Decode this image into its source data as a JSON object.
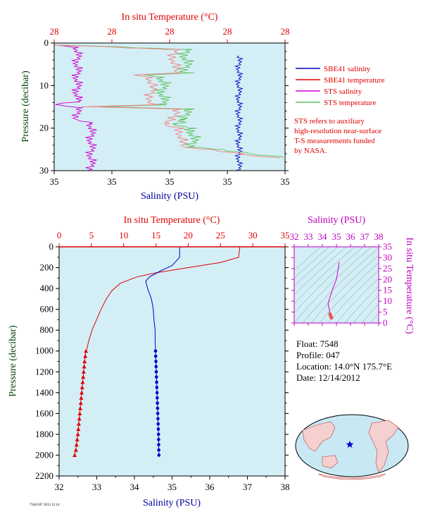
{
  "colors": {
    "plot_bg": "#d4eef6",
    "sbe41_salinity": "#0000c8",
    "sbe41_temperature": "#e00000",
    "sts_salinity": "#d000d0",
    "sts_temperature": "#60c060",
    "sts_temperature_alt": "#f08080",
    "top_axis": "#e00000",
    "bottom_axis": "#0000a0",
    "pressure_axis": "#004000",
    "ts_axis": "#c000c0"
  },
  "legend": {
    "items": [
      {
        "label": "SBE41 salinity",
        "color_key": "sbe41_salinity"
      },
      {
        "label": "SBE41 temperature",
        "color_key": "sbe41_temperature"
      },
      {
        "label": "STS salinity",
        "color_key": "sts_salinity"
      },
      {
        "label": "STS temperature",
        "color_key": "sts_temperature"
      }
    ],
    "note_lines": [
      "STS refers to auxiliary",
      "high-resolution near-surface",
      "T-S measurements funded",
      "by NASA."
    ]
  },
  "info": {
    "float": "Float:  7548",
    "profile": "Profile:  047",
    "location": "Location:  14.0°N  175.7°E",
    "date": "Date:  12/14/2012"
  },
  "tiny_label": "7548 047 2012 12 14",
  "chart_data": [
    {
      "id": "near-surface",
      "type": "line",
      "top_axis_label": "In situ Temperature (°C)",
      "top_ticks": [
        "28",
        "28",
        "28",
        "28",
        "28"
      ],
      "bottom_axis_label": "Salinity (PSU)",
      "bottom_ticks": [
        "35",
        "35",
        "35",
        "35",
        "35"
      ],
      "y_axis_label": "Pressure (decibar)",
      "y_ticks": [
        "0",
        "10",
        "20",
        "30"
      ],
      "ylim": [
        0,
        30
      ],
      "series": [
        {
          "name": "SBE41 salinity",
          "color_key": "sbe41_salinity",
          "points": [
            [
              0.8,
              3
            ],
            [
              0.8,
              30
            ]
          ]
        },
        {
          "name": "STS salinity",
          "color_key": "sts_salinity",
          "points": [
            [
              0.02,
              0.5
            ],
            [
              0.1,
              1.0
            ],
            [
              0.1,
              13.8
            ],
            [
              0.0,
              14.5
            ],
            [
              0.1,
              15.2
            ],
            [
              0.1,
              18.0
            ],
            [
              0.16,
              19.0
            ],
            [
              0.16,
              30
            ]
          ]
        },
        {
          "name": "STS temperature",
          "color_key": "sts_temperature",
          "points": [
            [
              0.02,
              0.5
            ],
            [
              0.25,
              0.8
            ],
            [
              0.4,
              1.2
            ],
            [
              0.57,
              1.5
            ],
            [
              0.57,
              7.0
            ],
            [
              0.4,
              7.5
            ],
            [
              0.47,
              8.0
            ],
            [
              0.47,
              14.5
            ],
            [
              0.2,
              15.0
            ],
            [
              0.57,
              15.5
            ],
            [
              0.57,
              18.0
            ],
            [
              0.52,
              19.0
            ],
            [
              0.6,
              20.0
            ],
            [
              0.6,
              24.5
            ],
            [
              0.7,
              25.0
            ],
            [
              0.85,
              26.0
            ],
            [
              1.0,
              27.0
            ]
          ]
        }
      ]
    },
    {
      "id": "full-profile",
      "type": "line",
      "top_axis_label": "In situ Temperature (°C)",
      "top_ticks": [
        "0",
        "5",
        "10",
        "15",
        "20",
        "25",
        "30",
        "35"
      ],
      "xlim_temperature": [
        0,
        35
      ],
      "bottom_axis_label": "Salinity (PSU)",
      "bottom_ticks": [
        "32",
        "33",
        "34",
        "35",
        "36",
        "37",
        "38"
      ],
      "xlim_salinity": [
        32,
        38
      ],
      "y_axis_label": "Pressure (decibar)",
      "y_ticks": [
        "0",
        "200",
        "400",
        "600",
        "800",
        "1000",
        "1200",
        "1400",
        "1600",
        "1800",
        "2000",
        "2200"
      ],
      "ylim": [
        0,
        2200
      ],
      "series": [
        {
          "name": "SBE41 temperature",
          "color_key": "sbe41_temperature",
          "x": [
            28.0,
            27.8,
            25,
            20,
            15,
            12,
            9.5,
            8.2,
            7.3,
            6.5,
            5.8,
            5.1,
            4.6,
            4.3,
            4.15,
            4.05,
            3.95,
            3.8,
            3.65,
            3.5,
            3.35,
            3.2,
            3.05,
            2.9,
            2.8,
            2.7,
            2.6,
            2.5,
            2.4
          ],
          "y": [
            0,
            100,
            150,
            200,
            250,
            290,
            350,
            420,
            500,
            600,
            700,
            800,
            900,
            980,
            1000,
            1050,
            1100,
            1200,
            1300,
            1400,
            1500,
            1600,
            1700,
            1800,
            1850,
            1900,
            1950,
            1980,
            2000
          ]
        },
        {
          "name": "SBE41 salinity",
          "color_key": "sbe41_salinity",
          "x": [
            35.2,
            35.2,
            35.0,
            34.7,
            34.4,
            34.3,
            34.35,
            34.45,
            34.5,
            34.52,
            34.55,
            34.55,
            34.56,
            34.57,
            34.58,
            34.59,
            34.6,
            34.61,
            34.62,
            34.63,
            34.64,
            34.65
          ],
          "y": [
            0,
            100,
            180,
            230,
            290,
            330,
            400,
            500,
            600,
            700,
            800,
            900,
            1000,
            1100,
            1200,
            1300,
            1400,
            1500,
            1600,
            1700,
            1800,
            2000
          ]
        }
      ],
      "markers_from": 1000
    },
    {
      "id": "ts-diagram",
      "type": "line",
      "top_axis_label": "Salinity (PSU)",
      "top_ticks": [
        "32",
        "33",
        "34",
        "35",
        "36",
        "37",
        "38"
      ],
      "right_axis_label": "In situ Temperature (°C)",
      "right_ticks": [
        "0",
        "5",
        "10",
        "15",
        "20",
        "25",
        "30",
        "35"
      ],
      "series": [
        {
          "name": "T-S",
          "color_key": "sts_salinity",
          "x": [
            35.2,
            35.0,
            34.7,
            34.4,
            34.5,
            34.55,
            34.6,
            34.65
          ],
          "y": [
            28,
            20,
            15,
            9,
            6,
            4,
            3,
            2.4
          ]
        }
      ]
    }
  ]
}
